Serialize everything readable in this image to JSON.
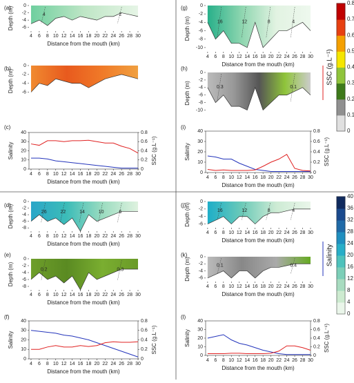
{
  "chart_data": [
    {
      "type": "contour",
      "label": "(a)",
      "ylabel": "Depth (m)",
      "xlabel": "Distance from the mouth (km)",
      "xlim": [
        3.5,
        30
      ],
      "xticks": [
        4,
        6,
        8,
        10,
        12,
        14,
        16,
        18,
        20,
        22,
        24,
        26,
        28,
        30
      ],
      "ylim": [
        -7,
        0
      ],
      "yticks": [
        0,
        -2,
        -4,
        -6
      ],
      "x": [
        4,
        6,
        8,
        10,
        12,
        14,
        16,
        18,
        20,
        22,
        24,
        26,
        28,
        30
      ],
      "bottom": [
        -5,
        -4,
        -5.5,
        -3.5,
        -3,
        -4,
        -3,
        -3.5,
        -4,
        -3,
        -3,
        -2,
        -2.5,
        -3
      ],
      "fill_colors": [
        "#6fcf9f",
        "#bfe6c6",
        "#e6f5e6"
      ],
      "contour_labels": [
        4,
        2
      ]
    },
    {
      "type": "contour",
      "label": "(b)",
      "ylabel": "Depth (m)",
      "xlim": [
        3.5,
        30
      ],
      "ylim": [
        -7,
        0
      ],
      "yticks": [
        0,
        -2,
        -4,
        -6
      ],
      "x": [
        4,
        6,
        8,
        10,
        12,
        14,
        16,
        18,
        20,
        22,
        24,
        26,
        28,
        30
      ],
      "bottom": [
        -6,
        -4,
        -4.5,
        -3,
        -3.5,
        -4,
        -4,
        -5,
        -4,
        -3,
        -2.5,
        -2,
        -2.5,
        -3
      ],
      "fill_colors": [
        "#f08a30",
        "#e85a1e",
        "#f07a28",
        "#f0a040"
      ],
      "contour_labels": []
    },
    {
      "type": "line",
      "label": "(c)",
      "ylabel": "Salinity",
      "y2label": "SSC (g.L⁻¹)",
      "xlabel": "Distance from the mouth (km)",
      "xlim": [
        3.5,
        30
      ],
      "xticks": [
        4,
        6,
        8,
        10,
        12,
        14,
        16,
        18,
        20,
        22,
        24,
        26,
        28,
        30
      ],
      "ylim": [
        0,
        40
      ],
      "yticks": [
        0,
        10,
        20,
        30,
        40
      ],
      "y2lim": [
        0,
        0.8
      ],
      "y2ticks": [
        0,
        0.2,
        0.4,
        0.6,
        0.8
      ],
      "x": [
        4,
        6,
        8,
        10,
        12,
        14,
        16,
        18,
        20,
        22,
        24,
        26,
        28,
        30
      ],
      "series": [
        {
          "color": "#2233bb",
          "values": [
            12,
            12,
            11,
            9,
            8,
            7,
            6,
            5,
            4,
            3,
            2,
            1,
            1,
            1
          ]
        },
        {
          "color": "#e02020",
          "axis": "y2",
          "values": [
            0.55,
            0.52,
            0.62,
            0.62,
            0.6,
            0.62,
            0.62,
            0.63,
            0.6,
            0.57,
            0.57,
            0.5,
            0.45,
            0.35
          ]
        }
      ]
    },
    {
      "type": "contour",
      "label": "(g)",
      "ylabel": "Depth (m)",
      "xlabel": "Distance from the mouth (km)",
      "xlim": [
        3.5,
        30
      ],
      "xticks": [
        4,
        6,
        8,
        10,
        12,
        14,
        16,
        18,
        20,
        22,
        24,
        26,
        28,
        30
      ],
      "ylim": [
        -11,
        0
      ],
      "yticks": [
        0,
        -2,
        -4,
        -6,
        -8,
        -10
      ],
      "x": [
        4,
        6,
        8,
        10,
        12,
        14,
        16,
        18,
        20,
        22,
        24,
        26,
        28,
        30
      ],
      "bottom": [
        -4,
        -8,
        -6,
        -9,
        -9,
        -10,
        -4,
        -10,
        -8,
        -6,
        -6,
        -5,
        -4,
        -6
      ],
      "fill_colors": [
        "#28b08a",
        "#8fd6b0",
        "#e2f3e2",
        "#eef8ee"
      ],
      "contour_labels": [
        16,
        12,
        8,
        4
      ]
    },
    {
      "type": "contour",
      "label": "(h)",
      "ylabel": "Depth (m)",
      "xlim": [
        3.5,
        30
      ],
      "ylim": [
        -11,
        0
      ],
      "yticks": [
        0,
        -2,
        -4,
        -6,
        -8,
        -10
      ],
      "x": [
        4,
        6,
        8,
        10,
        12,
        14,
        16,
        18,
        20,
        22,
        24,
        26,
        28,
        30
      ],
      "bottom": [
        -4,
        -8,
        -6,
        -9,
        -9,
        -10,
        -4,
        -10,
        -8,
        -6,
        -6,
        -5,
        -4,
        -6
      ],
      "fill_colors": [
        "#bbbbbb",
        "#999999",
        "#555555",
        "#8fc43a",
        "#cccccc"
      ],
      "contour_labels": [
        0.3,
        0.1
      ]
    },
    {
      "type": "line",
      "label": "(i)",
      "ylabel": "Salinity",
      "y2label": "SSC (g.L⁻¹)",
      "xlabel": "Distance from the mouth (km)",
      "xlim": [
        3.5,
        30
      ],
      "xticks": [
        4,
        6,
        8,
        10,
        12,
        14,
        16,
        18,
        20,
        22,
        24,
        26,
        28,
        30
      ],
      "ylim": [
        0,
        40
      ],
      "yticks": [
        0,
        10,
        20,
        30,
        40
      ],
      "y2lim": [
        0,
        0.8
      ],
      "y2ticks": [
        0,
        0.2,
        0.4,
        0.6,
        0.8
      ],
      "x": [
        4,
        6,
        8,
        10,
        12,
        14,
        16,
        18,
        20,
        22,
        24,
        26,
        28,
        30
      ],
      "series": [
        {
          "color": "#2233bb",
          "values": [
            16,
            15,
            13,
            13,
            9,
            6,
            3,
            2,
            1,
            1,
            1,
            1,
            1,
            1
          ]
        },
        {
          "color": "#e02020",
          "axis": "y2",
          "values": [
            0.06,
            0.04,
            0.05,
            0.04,
            0.04,
            0.04,
            0.05,
            0.12,
            0.2,
            0.26,
            0.35,
            0.08,
            0.04,
            0.03
          ]
        }
      ]
    },
    {
      "type": "contour",
      "label": "(d)",
      "ylabel": "Depth (m)",
      "xlabel": "Distance from the mouth (km)",
      "xlim": [
        3.5,
        30
      ],
      "xticks": [
        4,
        6,
        8,
        10,
        12,
        14,
        16,
        18,
        20,
        22,
        24,
        26,
        28,
        30
      ],
      "ylim": [
        -9,
        0
      ],
      "yticks": [
        0,
        -2,
        -4,
        -6,
        -8
      ],
      "x": [
        4,
        6,
        8,
        10,
        12,
        14,
        16,
        18,
        20,
        22,
        24,
        26,
        28,
        30
      ],
      "bottom": [
        -6,
        -4,
        -6,
        -5,
        -7,
        -5,
        -9,
        -4,
        -6,
        -5,
        -4,
        -3,
        -3,
        -3
      ],
      "fill_colors": [
        "#2aa6c8",
        "#3cbcb8",
        "#9bdcc0",
        "#dff2df"
      ],
      "contour_labels": [
        26,
        22,
        14,
        10,
        6
      ]
    },
    {
      "type": "contour",
      "label": "(e)",
      "ylabel": "Depth (m)",
      "xlabel": "Distance from the mouth (km)",
      "xlim": [
        3.5,
        30
      ],
      "xticks": [
        4,
        6,
        8,
        10,
        12,
        14,
        16,
        18,
        20,
        22,
        24,
        26,
        28,
        30
      ],
      "ylim": [
        -9,
        0
      ],
      "yticks": [
        0,
        -2,
        -4,
        -6,
        -8
      ],
      "x": [
        4,
        6,
        8,
        10,
        12,
        14,
        16,
        18,
        20,
        22,
        24,
        26,
        28,
        30
      ],
      "bottom": [
        -6,
        -4,
        -6,
        -5,
        -7,
        -5,
        -9,
        -4,
        -6,
        -5,
        -4,
        -3,
        -3,
        -3
      ],
      "fill_colors": [
        "#6e9e2a",
        "#5a8a22",
        "#7aae30",
        "#6a9a28"
      ],
      "contour_labels": [
        0.2,
        0.3
      ]
    },
    {
      "type": "line",
      "label": "(f)",
      "ylabel": "Salinity",
      "y2label": "SSC (g.L⁻¹)",
      "xlabel": "Distance from the mouth (km)",
      "xlim": [
        3.5,
        30
      ],
      "xticks": [
        4,
        6,
        8,
        10,
        12,
        14,
        16,
        18,
        20,
        22,
        24,
        26,
        28,
        30
      ],
      "ylim": [
        0,
        40
      ],
      "yticks": [
        0,
        10,
        20,
        30,
        40
      ],
      "y2lim": [
        0,
        0.8
      ],
      "y2ticks": [
        0,
        0.2,
        0.4,
        0.6,
        0.8
      ],
      "x": [
        4,
        6,
        8,
        10,
        12,
        14,
        16,
        18,
        20,
        22,
        24,
        26,
        28,
        30
      ],
      "series": [
        {
          "color": "#2233bb",
          "values": [
            30,
            29,
            28,
            27,
            25,
            24,
            22,
            20,
            17,
            14,
            11,
            8,
            5,
            2
          ]
        },
        {
          "color": "#e02020",
          "axis": "y2",
          "values": [
            0.2,
            0.2,
            0.25,
            0.28,
            0.25,
            0.25,
            0.28,
            0.26,
            0.28,
            0.34,
            0.36,
            0.35,
            0.35,
            0.36
          ]
        }
      ]
    },
    {
      "type": "contour",
      "label": "(j)",
      "ylabel": "Depth (m)",
      "xlabel": "Distance from the mouth (km)",
      "xlim": [
        3.5,
        30
      ],
      "xticks": [
        4,
        6,
        8,
        10,
        12,
        14,
        16,
        18,
        20,
        22,
        24,
        26,
        28,
        30
      ],
      "ylim": [
        -7,
        0
      ],
      "yticks": [
        0,
        -2,
        -4,
        -6
      ],
      "x": [
        4,
        6,
        8,
        10,
        12,
        14,
        16,
        18,
        20,
        22,
        24,
        26,
        28,
        30
      ],
      "bottom": [
        -6,
        -5,
        -4,
        -6,
        -4,
        -4,
        -6,
        -4,
        -3,
        -3,
        -2.5,
        -2,
        -2,
        -2
      ],
      "fill_colors": [
        "#1eaec8",
        "#6ccab8",
        "#cdebd4",
        "#eaf6ea"
      ],
      "contour_labels": [
        16,
        12,
        8,
        4
      ]
    },
    {
      "type": "contour",
      "label": "(k)",
      "ylabel": "Depth (m)",
      "xlabel": "Distance from the mouth (km)",
      "xlim": [
        3.5,
        30
      ],
      "xticks": [
        4,
        6,
        8,
        10,
        12,
        14,
        16,
        18,
        20,
        22,
        24,
        26,
        28,
        30
      ],
      "ylim": [
        -7,
        0
      ],
      "yticks": [
        0,
        -2,
        -4,
        -6
      ],
      "x": [
        4,
        6,
        8,
        10,
        12,
        14,
        16,
        18,
        20,
        22,
        24,
        26,
        28,
        30
      ],
      "bottom": [
        -6,
        -5,
        -4,
        -6,
        -4,
        -4,
        -6,
        -4,
        -3,
        -3,
        -2.5,
        -2,
        -2,
        -2
      ],
      "fill_colors": [
        "#bbbbbb",
        "#888888",
        "#aaaaaa",
        "#66aa22"
      ],
      "contour_labels": [
        0.1,
        0.4
      ]
    },
    {
      "type": "line",
      "label": "(l)",
      "ylabel": "Salinity",
      "y2label": "SSC (g.L⁻¹)",
      "xlabel": "Distance from the mouth (km)",
      "xlim": [
        3.5,
        30
      ],
      "xticks": [
        4,
        6,
        8,
        10,
        12,
        14,
        16,
        18,
        20,
        22,
        24,
        26,
        28,
        30
      ],
      "ylim": [
        0,
        40
      ],
      "yticks": [
        0,
        10,
        20,
        30,
        40
      ],
      "y2lim": [
        0,
        0.8
      ],
      "y2ticks": [
        0,
        0.2,
        0.4,
        0.6,
        0.8
      ],
      "x": [
        4,
        6,
        8,
        10,
        12,
        14,
        16,
        18,
        20,
        22,
        24,
        26,
        28,
        30
      ],
      "series": [
        {
          "color": "#2233bb",
          "values": [
            20,
            22,
            24,
            18,
            14,
            12,
            9,
            6,
            4,
            2,
            1,
            1,
            1,
            1
          ]
        },
        {
          "color": "#e02020",
          "axis": "y2",
          "values": [
            0.04,
            0.04,
            0.04,
            0.05,
            0.05,
            0.04,
            0.04,
            0.04,
            0.05,
            0.1,
            0.22,
            0.22,
            0.18,
            0.12
          ]
        }
      ]
    }
  ],
  "colorbars": [
    {
      "label": "SSC (g.L⁻¹)",
      "ticks": [
        0,
        0.1,
        0.2,
        0.3,
        0.4,
        0.5,
        0.6,
        0.7,
        0.8
      ],
      "colors": [
        "#e0e0e0",
        "#909090",
        "#3d7a1a",
        "#8fc43a",
        "#f5e600",
        "#f5a000",
        "#e84010",
        "#c00000"
      ]
    },
    {
      "label": "Salinity",
      "ticks": [
        0,
        4,
        8,
        12,
        16,
        20,
        24,
        28,
        32,
        36,
        40
      ],
      "colors": [
        "#eaf6ea",
        "#cdebd0",
        "#a8dcc0",
        "#7ccfb8",
        "#4ec2bc",
        "#27aec8",
        "#1f8fc0",
        "#1f6aa8",
        "#1a4a8e",
        "#0f2a5e"
      ]
    }
  ]
}
